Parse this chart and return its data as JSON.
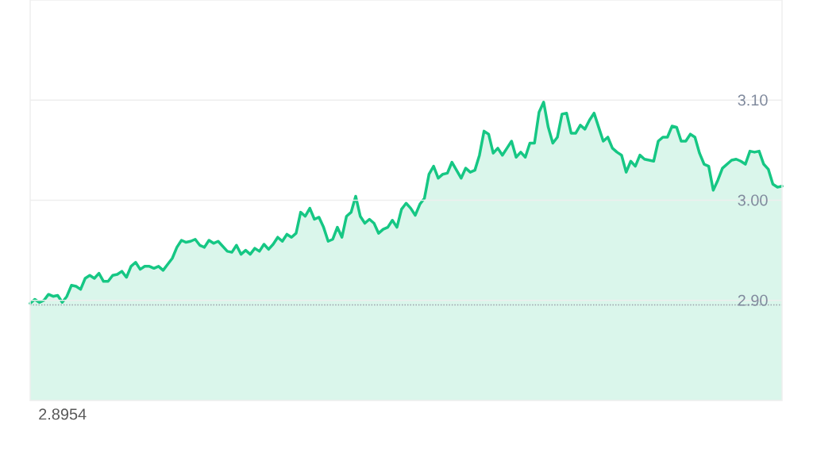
{
  "chart_data": {
    "type": "area",
    "categories": [
      null,
      null,
      null,
      null,
      null,
      null,
      null,
      null,
      null,
      null,
      null,
      null,
      null,
      null,
      null,
      null,
      null,
      null,
      null,
      null,
      null,
      null,
      null,
      null,
      null,
      null,
      null,
      null,
      null,
      null,
      null,
      null,
      null,
      null,
      null,
      null,
      null,
      null,
      null,
      null,
      null,
      null,
      null,
      null,
      null,
      null,
      null,
      null,
      null,
      null,
      null,
      null,
      null,
      null,
      null,
      null,
      null,
      null,
      null,
      null,
      null,
      null,
      null,
      null,
      null,
      null,
      null,
      null,
      null,
      null,
      null,
      null,
      null,
      null,
      null,
      null,
      null,
      null,
      null,
      null,
      null,
      null,
      null,
      null,
      null,
      null,
      null,
      null,
      null,
      null,
      null,
      null,
      null,
      null,
      null,
      null,
      null,
      null,
      null,
      null,
      null,
      null,
      null,
      null,
      null,
      null,
      null,
      null,
      null,
      null,
      null,
      null,
      null,
      null,
      null,
      null,
      null,
      null,
      null,
      null,
      null,
      null,
      null,
      null,
      null,
      null,
      null,
      null,
      null,
      null,
      null,
      null,
      null,
      null,
      null,
      null,
      null,
      null,
      null,
      null,
      null,
      null,
      null,
      null,
      null,
      null,
      null,
      null,
      null,
      null,
      null,
      null,
      null,
      null,
      null,
      null,
      null,
      null,
      null,
      null,
      null,
      null,
      null,
      null,
      null
    ],
    "values": [
      2.897,
      2.901,
      2.898,
      2.9,
      2.906,
      2.904,
      2.905,
      2.898,
      2.904,
      2.915,
      2.914,
      2.911,
      2.922,
      2.925,
      2.922,
      2.927,
      2.919,
      2.919,
      2.925,
      2.926,
      2.929,
      2.923,
      2.934,
      2.938,
      2.931,
      2.934,
      2.934,
      2.932,
      2.934,
      2.93,
      2.936,
      2.942,
      2.953,
      2.96,
      2.958,
      2.959,
      2.961,
      2.955,
      2.953,
      2.96,
      2.957,
      2.959,
      2.954,
      2.949,
      2.948,
      2.955,
      2.946,
      2.95,
      2.946,
      2.952,
      2.949,
      2.956,
      2.951,
      2.956,
      2.963,
      2.959,
      2.966,
      2.963,
      2.967,
      2.988,
      2.984,
      2.992,
      2.981,
      2.983,
      2.973,
      2.959,
      2.961,
      2.973,
      2.963,
      2.984,
      2.988,
      3.004,
      2.984,
      2.977,
      2.981,
      2.977,
      2.967,
      2.971,
      2.973,
      2.98,
      2.973,
      2.991,
      2.997,
      2.992,
      2.985,
      2.996,
      3.002,
      3.026,
      3.034,
      3.022,
      3.026,
      3.027,
      3.038,
      3.03,
      3.022,
      3.032,
      3.028,
      3.03,
      3.045,
      3.069,
      3.066,
      3.047,
      3.052,
      3.045,
      3.052,
      3.059,
      3.043,
      3.048,
      3.043,
      3.057,
      3.057,
      3.088,
      3.098,
      3.073,
      3.057,
      3.063,
      3.086,
      3.087,
      3.067,
      3.067,
      3.075,
      3.071,
      3.08,
      3.087,
      3.073,
      3.059,
      3.063,
      3.052,
      3.048,
      3.045,
      3.028,
      3.039,
      3.034,
      3.045,
      3.041,
      3.04,
      3.039,
      3.059,
      3.063,
      3.063,
      3.074,
      3.073,
      3.059,
      3.059,
      3.066,
      3.063,
      3.047,
      3.036,
      3.034,
      3.01,
      3.02,
      3.032,
      3.036,
      3.04,
      3.041,
      3.039,
      3.036,
      3.049,
      3.048,
      3.049,
      3.036,
      3.031,
      3.016,
      3.013,
      3.014
    ],
    "color": "#16c784",
    "ylim": [
      2.8,
      3.2
    ],
    "yticks": [
      {
        "value": 2.9,
        "label": "2.90"
      },
      {
        "value": 3.0,
        "label": "3.00"
      },
      {
        "value": 3.1,
        "label": "3.10"
      }
    ],
    "grid": "y",
    "tick_labels": "y",
    "ref_lines": [
      {
        "axis": "y",
        "value": 2.8954,
        "line_style": "dotted",
        "color": "#9aa0aa"
      }
    ],
    "annotations": [
      "2.8954"
    ]
  }
}
